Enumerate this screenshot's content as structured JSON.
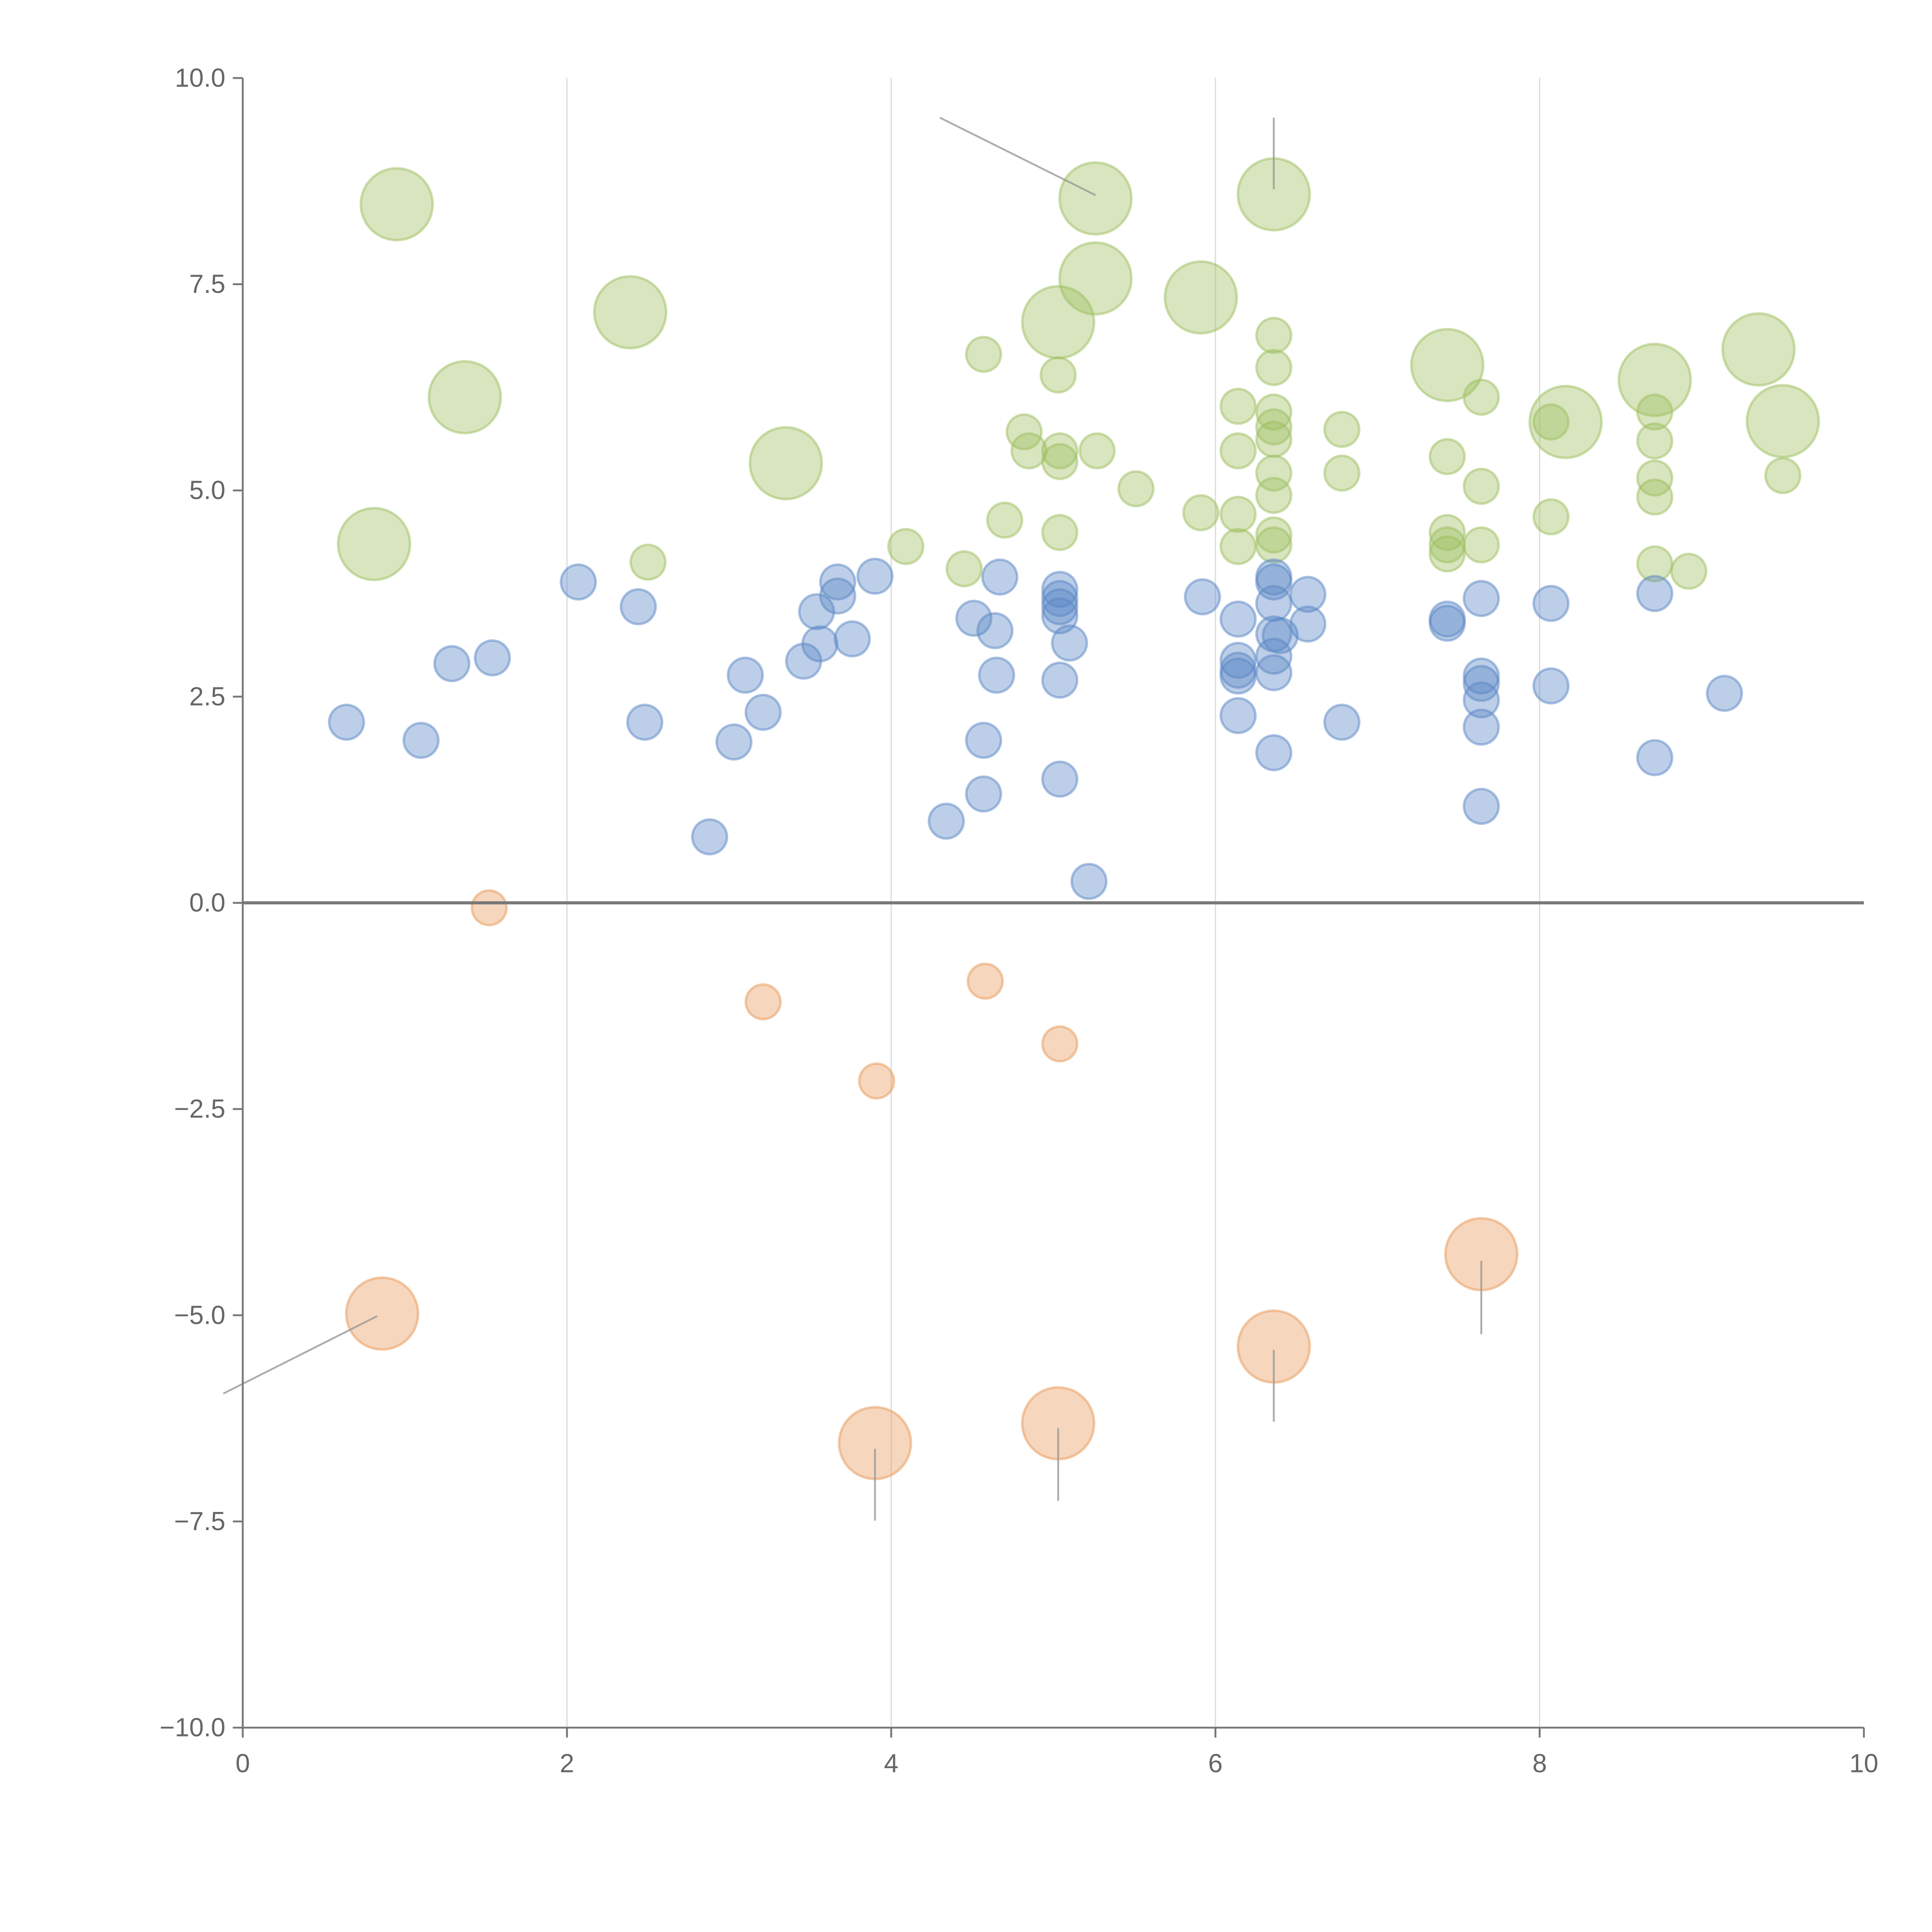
{
  "chart_data": {
    "type": "scatter",
    "title": "",
    "xlabel": "",
    "ylabel": "",
    "xlim": [
      0,
      10
    ],
    "ylim": [
      -10,
      10
    ],
    "grid": "vertical gridlines at x ticks",
    "zero_line": true,
    "x_ticks": [
      "0",
      "2",
      "4",
      "6",
      "8",
      "10"
    ],
    "x_tick_values": [
      0,
      2,
      4,
      6,
      8,
      10
    ],
    "y_ticks": [
      "10.0",
      "7.5",
      "5.0",
      "2.5",
      "0.0",
      "−2.5",
      "−5.0",
      "−7.5",
      "−10.0"
    ],
    "y_tick_values": [
      10,
      7.5,
      5,
      2.5,
      0,
      -2.5,
      -5,
      -7.5,
      -10
    ],
    "series": [
      {
        "name": "green",
        "color": "#9dbf5f",
        "points": [
          [
            0.95,
            8.47,
            4
          ],
          [
            5.26,
            8.54,
            4
          ],
          [
            6.36,
            8.59,
            4
          ],
          [
            5.26,
            7.57,
            4
          ],
          [
            5.91,
            7.34,
            4
          ],
          [
            5.03,
            7.04,
            4
          ],
          [
            2.39,
            7.16,
            4
          ],
          [
            1.37,
            6.13,
            4
          ],
          [
            7.43,
            6.52,
            4
          ],
          [
            8.71,
            6.34,
            4
          ],
          [
            9.35,
            6.71,
            4
          ],
          [
            8.16,
            5.83,
            4
          ],
          [
            9.5,
            5.84,
            4
          ],
          [
            3.35,
            5.33,
            4
          ],
          [
            0.81,
            4.35,
            4
          ],
          [
            4.57,
            6.65,
            1
          ],
          [
            5.03,
            6.4,
            1
          ],
          [
            6.36,
            6.88,
            1
          ],
          [
            6.36,
            6.49,
            1
          ],
          [
            6.14,
            6.02,
            1
          ],
          [
            7.64,
            6.13,
            1
          ],
          [
            6.36,
            5.95,
            1
          ],
          [
            6.36,
            5.77,
            1
          ],
          [
            6.36,
            5.62,
            1
          ],
          [
            4.82,
            5.71,
            1
          ],
          [
            4.85,
            5.48,
            1
          ],
          [
            5.04,
            5.48,
            1
          ],
          [
            5.04,
            5.35,
            1
          ],
          [
            5.27,
            5.48,
            1
          ],
          [
            6.14,
            5.48,
            1
          ],
          [
            6.78,
            5.74,
            1
          ],
          [
            6.78,
            5.21,
            1
          ],
          [
            6.36,
            5.21,
            1
          ],
          [
            5.51,
            5.02,
            1
          ],
          [
            7.43,
            5.41,
            1
          ],
          [
            7.64,
            5.05,
            1
          ],
          [
            8.07,
            5.83,
            1
          ],
          [
            8.71,
            5.6,
            1
          ],
          [
            8.71,
            5.95,
            1
          ],
          [
            8.71,
            5.15,
            1
          ],
          [
            8.71,
            4.92,
            1
          ],
          [
            9.5,
            5.18,
            1
          ],
          [
            6.36,
            4.94,
            1
          ],
          [
            5.91,
            4.73,
            1
          ],
          [
            6.14,
            4.71,
            1
          ],
          [
            8.07,
            4.68,
            1
          ],
          [
            4.7,
            4.64,
            1
          ],
          [
            5.04,
            4.49,
            1
          ],
          [
            6.36,
            4.46,
            1
          ],
          [
            6.36,
            4.34,
            1
          ],
          [
            6.14,
            4.32,
            1
          ],
          [
            7.43,
            4.49,
            1
          ],
          [
            7.43,
            4.34,
            1
          ],
          [
            7.43,
            4.23,
            1
          ],
          [
            7.64,
            4.34,
            1
          ],
          [
            4.09,
            4.32,
            1
          ],
          [
            2.5,
            4.13,
            1
          ],
          [
            4.45,
            4.05,
            1
          ],
          [
            8.71,
            4.11,
            1
          ],
          [
            8.92,
            4.02,
            1
          ]
        ]
      },
      {
        "name": "blue",
        "color": "#5b87c5",
        "points": [
          [
            0.64,
            2.19,
            1
          ],
          [
            1.1,
            1.97,
            1
          ],
          [
            1.29,
            2.9,
            1
          ],
          [
            1.54,
            2.97,
            1
          ],
          [
            2.07,
            3.89,
            1
          ],
          [
            2.44,
            3.59,
            1
          ],
          [
            2.48,
            2.19,
            1
          ],
          [
            2.88,
            0.8,
            1
          ],
          [
            3.03,
            1.95,
            1
          ],
          [
            3.1,
            2.76,
            1
          ],
          [
            3.21,
            2.31,
            1
          ],
          [
            3.46,
            2.93,
            1
          ],
          [
            3.54,
            3.53,
            1
          ],
          [
            3.56,
            3.14,
            1
          ],
          [
            3.67,
            3.89,
            1
          ],
          [
            3.67,
            3.72,
            1
          ],
          [
            3.76,
            3.2,
            1
          ],
          [
            3.9,
            3.96,
            1
          ],
          [
            4.34,
            0.99,
            1
          ],
          [
            4.51,
            3.45,
            1
          ],
          [
            4.57,
            1.97,
            1
          ],
          [
            4.57,
            1.32,
            1
          ],
          [
            4.64,
            3.3,
            1
          ],
          [
            4.65,
            2.76,
            1
          ],
          [
            4.67,
            3.95,
            1
          ],
          [
            5.04,
            3.8,
            1
          ],
          [
            5.04,
            3.69,
            1
          ],
          [
            5.04,
            3.59,
            1
          ],
          [
            5.04,
            3.48,
            1
          ],
          [
            5.04,
            2.7,
            1
          ],
          [
            5.04,
            1.5,
            1
          ],
          [
            5.1,
            3.15,
            1
          ],
          [
            5.22,
            0.26,
            1
          ],
          [
            5.92,
            3.71,
            1
          ],
          [
            6.14,
            3.44,
            1
          ],
          [
            6.14,
            2.94,
            1
          ],
          [
            6.14,
            2.82,
            1
          ],
          [
            6.14,
            2.75,
            1
          ],
          [
            6.14,
            2.27,
            1
          ],
          [
            6.36,
            3.95,
            1
          ],
          [
            6.36,
            3.89,
            1
          ],
          [
            6.36,
            3.63,
            1
          ],
          [
            6.36,
            3.26,
            1
          ],
          [
            6.36,
            2.99,
            1
          ],
          [
            6.36,
            2.79,
            1
          ],
          [
            6.36,
            1.82,
            1
          ],
          [
            6.4,
            3.24,
            1
          ],
          [
            6.57,
            3.74,
            1
          ],
          [
            6.57,
            3.38,
            1
          ],
          [
            6.78,
            2.19,
            1
          ],
          [
            7.43,
            3.44,
            1
          ],
          [
            7.43,
            3.39,
            1
          ],
          [
            7.64,
            3.69,
            1
          ],
          [
            7.64,
            2.75,
            1
          ],
          [
            7.64,
            2.66,
            1
          ],
          [
            7.64,
            2.46,
            1
          ],
          [
            7.64,
            2.13,
            1
          ],
          [
            7.64,
            1.17,
            1
          ],
          [
            8.07,
            3.63,
            1
          ],
          [
            8.07,
            2.63,
            1
          ],
          [
            8.71,
            3.75,
            1
          ],
          [
            8.71,
            1.76,
            1
          ],
          [
            9.14,
            2.54,
            1
          ]
        ]
      },
      {
        "name": "orange",
        "color": "#e8995a",
        "points": [
          [
            1.52,
            -0.06,
            1
          ],
          [
            3.21,
            -1.2,
            1
          ],
          [
            3.91,
            -2.16,
            1
          ],
          [
            4.58,
            -0.95,
            1
          ],
          [
            5.04,
            -1.71,
            1
          ],
          [
            0.86,
            -4.98,
            4
          ],
          [
            3.9,
            -6.55,
            4
          ],
          [
            5.03,
            -6.31,
            4
          ],
          [
            6.36,
            -5.38,
            4
          ],
          [
            7.64,
            -4.26,
            4
          ]
        ]
      }
    ],
    "leader_lines": [
      [
        [
          4.3,
          9.52
        ],
        [
          5.26,
          8.58
        ]
      ],
      [
        [
          6.36,
          9.52
        ],
        [
          6.36,
          8.65
        ]
      ],
      [
        [
          -0.12,
          -5.95
        ],
        [
          0.83,
          -5.01
        ]
      ],
      [
        [
          3.9,
          -6.62
        ],
        [
          3.9,
          -7.49
        ]
      ],
      [
        [
          5.03,
          -6.37
        ],
        [
          5.03,
          -7.25
        ]
      ],
      [
        [
          6.36,
          -5.42
        ],
        [
          6.36,
          -6.29
        ]
      ],
      [
        [
          7.64,
          -4.34
        ],
        [
          7.64,
          -5.23
        ]
      ]
    ]
  }
}
